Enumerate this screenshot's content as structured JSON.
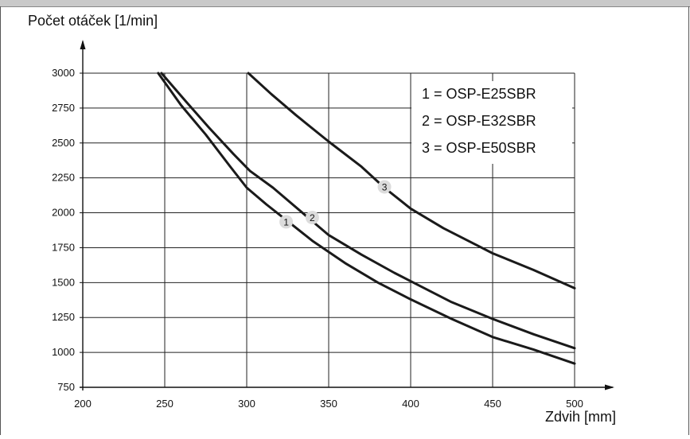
{
  "chart_data": {
    "type": "line",
    "title": "",
    "xlabel": "Zdvih [mm]",
    "ylabel": "Počet otáček [1/min]",
    "xlim": [
      200,
      500
    ],
    "ylim": [
      750,
      3000
    ],
    "x_ticks": [
      "200",
      "250",
      "300",
      "350",
      "400",
      "450",
      "500"
    ],
    "y_ticks": [
      "750",
      "1000",
      "1250",
      "1500",
      "1750",
      "2000",
      "2250",
      "2500",
      "2750",
      "3000"
    ],
    "x_tick_values": [
      200,
      250,
      300,
      350,
      400,
      450,
      500
    ],
    "y_tick_values": [
      750,
      1000,
      1250,
      1500,
      1750,
      2000,
      2250,
      2500,
      2750,
      3000
    ],
    "grid": true,
    "legend": [
      "1 = OSP-E25SBR",
      "2 = OSP-E32SBR",
      "3 = OSP-E50SBR"
    ],
    "legend_position": "top-right",
    "series": [
      {
        "label": "1",
        "x": [
          246,
          260,
          275,
          290,
          300,
          312,
          326,
          340,
          360,
          380,
          400,
          425,
          450,
          475,
          500
        ],
        "y": [
          3000,
          2770,
          2560,
          2330,
          2180,
          2060,
          1930,
          1800,
          1640,
          1500,
          1380,
          1240,
          1110,
          1020,
          920
        ]
      },
      {
        "label": "2",
        "x": [
          248,
          262,
          277,
          292,
          302,
          316,
          338,
          350,
          370,
          390,
          400,
          425,
          450,
          475,
          500
        ],
        "y": [
          3000,
          2810,
          2610,
          2420,
          2300,
          2180,
          1960,
          1840,
          1700,
          1570,
          1510,
          1360,
          1240,
          1130,
          1030
        ]
      },
      {
        "label": "3",
        "x": [
          301,
          315,
          330,
          350,
          370,
          384,
          400,
          420,
          440,
          450,
          475,
          500
        ],
        "y": [
          3000,
          2850,
          2700,
          2510,
          2330,
          2180,
          2030,
          1890,
          1770,
          1710,
          1590,
          1460
        ]
      }
    ]
  }
}
